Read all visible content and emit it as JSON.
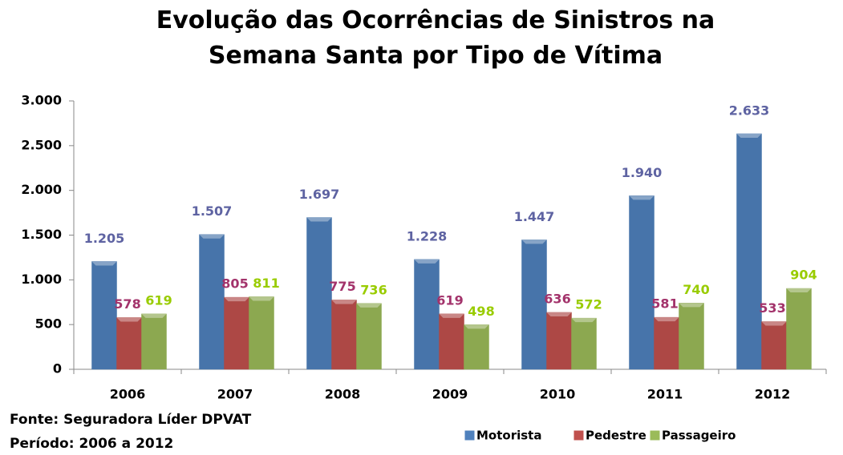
{
  "chart_data": {
    "type": "bar",
    "title": "Evolução das Ocorrências de Sinistros na Semana Santa por Tipo de Vítima",
    "categories": [
      "2006",
      "2007",
      "2008",
      "2009",
      "2010",
      "2011",
      "2012"
    ],
    "series": [
      {
        "name": "Motorista",
        "color": "#4f81bd",
        "label_color": "#5e63a2",
        "values": [
          1205,
          1507,
          1697,
          1228,
          1447,
          1940,
          2633
        ],
        "value_labels": [
          "1.205",
          "1.507",
          "1.697",
          "1.228",
          "1.447",
          "1.940",
          "2.633"
        ]
      },
      {
        "name": "Pedestre",
        "color": "#c0504d",
        "label_color": "#a3336b",
        "values": [
          578,
          805,
          775,
          619,
          636,
          581,
          533
        ],
        "value_labels": [
          "578",
          "805",
          "775",
          "619",
          "636",
          "581",
          "533"
        ]
      },
      {
        "name": "Passageiro",
        "color": "#9bbb59",
        "label_color": "#99cc00",
        "values": [
          619,
          811,
          736,
          498,
          572,
          740,
          904
        ],
        "value_labels": [
          "619",
          "811",
          "736",
          "498",
          "572",
          "740",
          "904"
        ]
      }
    ],
    "ylim": [
      0,
      3000
    ],
    "yticks": [
      0,
      500,
      {
        "value": 1000,
        "label": "1.000"
      },
      {
        "value": 1500,
        "label": "1.500"
      },
      {
        "value": 2000,
        "label": "2.000"
      },
      {
        "value": 2500,
        "label": "2.500"
      },
      {
        "value": 3000,
        "label": "3.000"
      }
    ],
    "grid": false,
    "legend": "bottom",
    "annotations": [
      "Fonte: Seguradora Líder DPVAT",
      "Período: 2006 a 2012"
    ]
  }
}
